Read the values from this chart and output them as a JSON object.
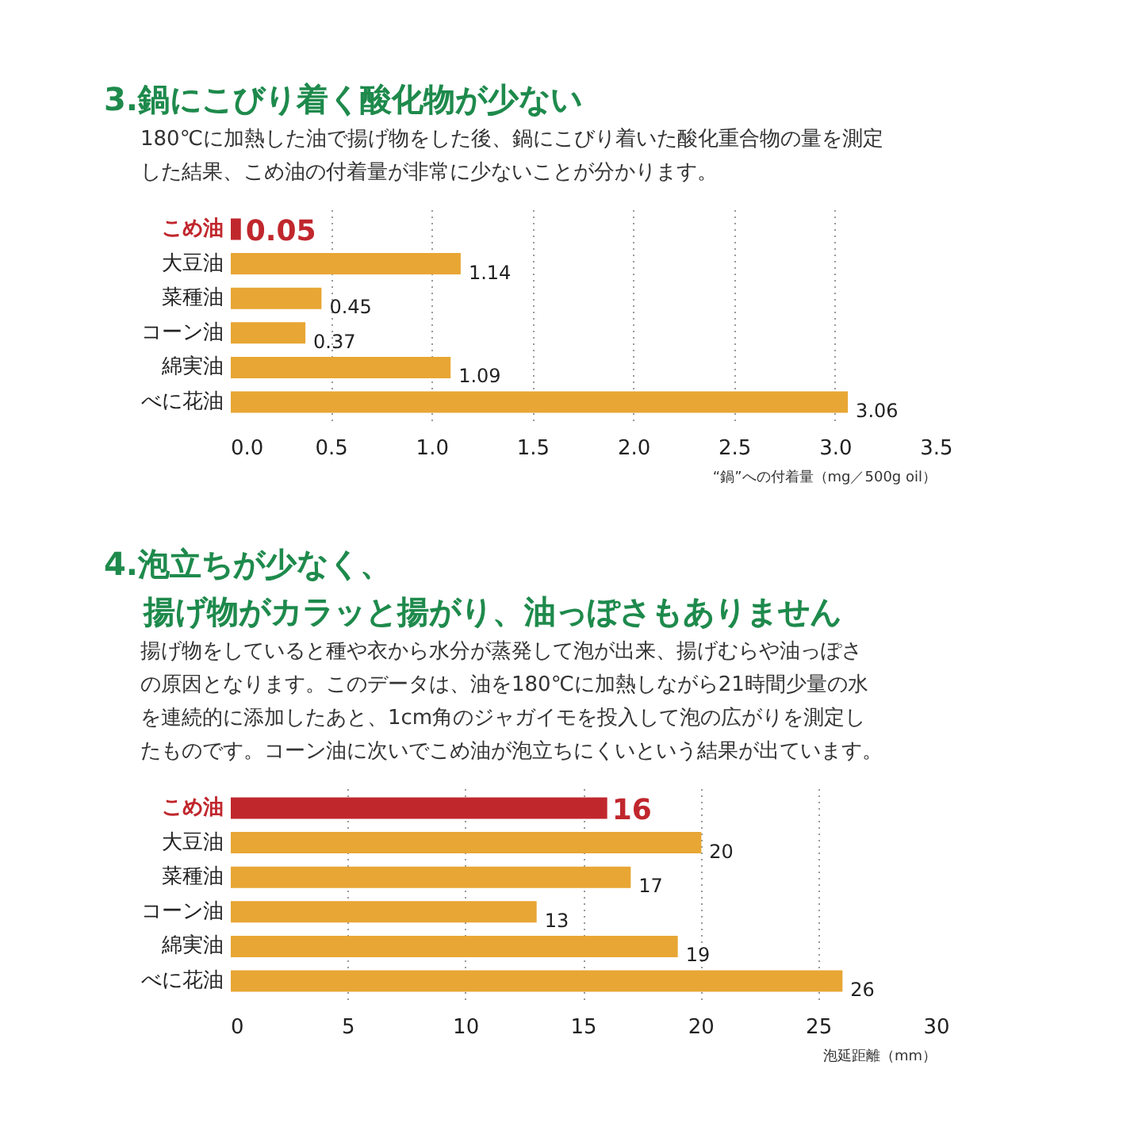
{
  "chart_data": [
    {
      "type": "bar",
      "orientation": "horizontal",
      "title": "3.鍋にこびり着く酸化物が少ない",
      "subtitle": "180℃に加熱した油で揚げ物をした後、鍋にこびり着いた酸化重合物の量を測定した結果、こめ油の付着量が非常に少ないことが分かります。",
      "categories": [
        "こめ油",
        "大豆油",
        "菜種油",
        "コーン油",
        "綿実油",
        "べに花油"
      ],
      "values": [
        0.05,
        1.14,
        0.45,
        0.37,
        1.09,
        3.06
      ],
      "colors": [
        "#c0272d",
        "#e8a634",
        "#e8a634",
        "#e8a634",
        "#e8a634",
        "#e8a634"
      ],
      "xlim": [
        0,
        3.5
      ],
      "xticks": [
        {
          "value": 0,
          "label": "0.0"
        },
        {
          "value": 0.5,
          "label": "0.5"
        },
        {
          "value": 1,
          "label": "1.0"
        },
        {
          "value": 1.5,
          "label": "1.5"
        },
        {
          "value": 2,
          "label": "2.0"
        },
        {
          "value": 2.5,
          "label": "2.5"
        },
        {
          "value": 3,
          "label": "3.0"
        },
        {
          "value": 3.5,
          "label": "3.5"
        }
      ],
      "xlabel": "“鍋”への付着量（mg／500g oil）",
      "data_labels": true,
      "grid": "x"
    },
    {
      "type": "bar",
      "orientation": "horizontal",
      "title": "4.泡立ちが少なく、揚げ物がカラッと揚がり、油っぽさもありません",
      "subtitle": "揚げ物をしていると種や衣から水分が蒸発して泡が出来、揚げむらや油っぽさの原因となります。このデータは、油を180℃に加熱しながら21時間少量の水を連続的に添加したあと、1cm角のジャガイモを投入して泡の広がりを測定したものです。コーン油に次いでこめ油が泡立ちにくいという結果が出ています。",
      "categories": [
        "こめ油",
        "大豆油",
        "菜種油",
        "コーン油",
        "綿実油",
        "べに花油"
      ],
      "values": [
        16,
        20,
        17,
        13,
        19,
        26
      ],
      "colors": [
        "#c0272d",
        "#e8a634",
        "#e8a634",
        "#e8a634",
        "#e8a634",
        "#e8a634"
      ],
      "xlim": [
        0,
        30
      ],
      "xticks": [
        0,
        5,
        10,
        15,
        20,
        25,
        30
      ],
      "xlabel": "泡延距離（mm）",
      "data_labels": true,
      "grid": "x"
    }
  ]
}
